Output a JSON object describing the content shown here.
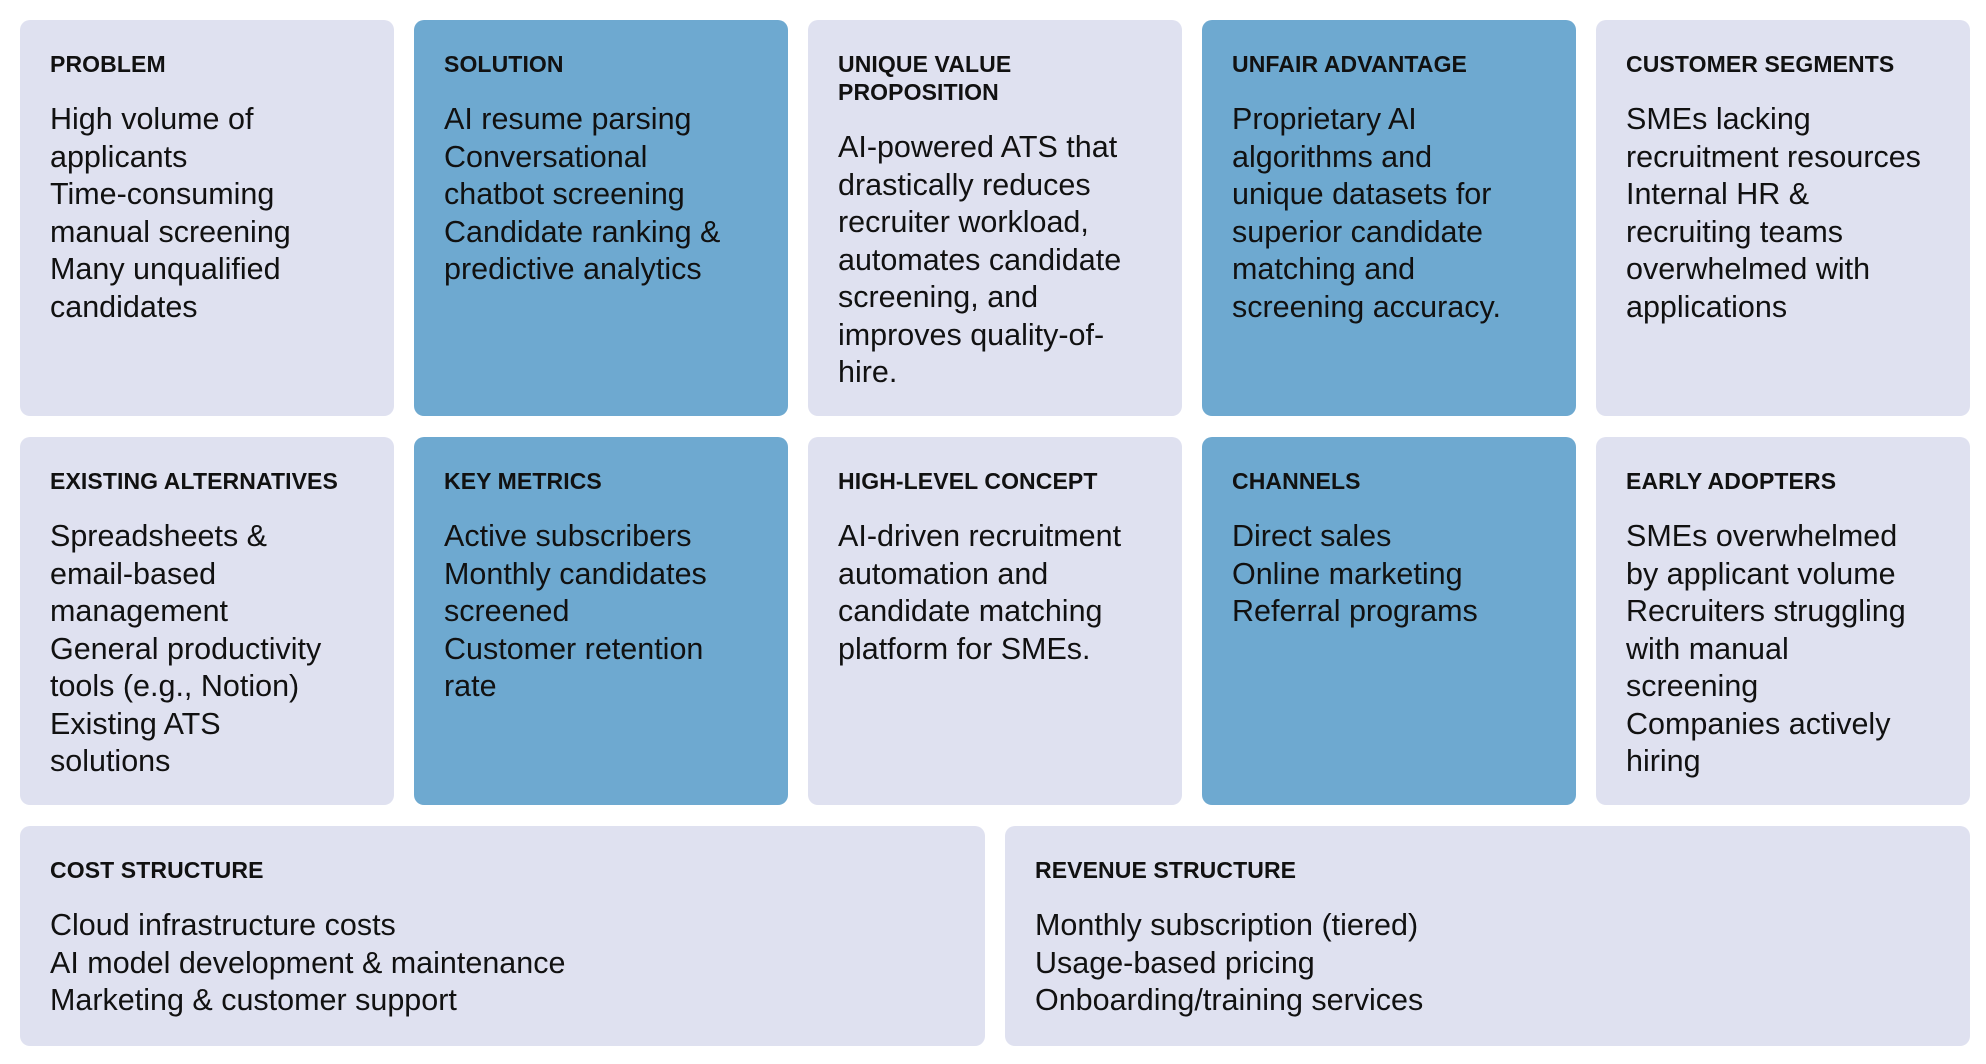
{
  "canvas": {
    "colors": {
      "light_card": "#dfe1f0",
      "blue_card": "#6ea9d0",
      "text": "#111111"
    },
    "cards": {
      "problem": {
        "title": "PROBLEM",
        "lines": [
          "High volume of",
          "applicants",
          "Time-consuming",
          "manual screening",
          "Many unqualified",
          "candidates"
        ]
      },
      "solution": {
        "title": "SOLUTION",
        "lines": [
          "AI resume parsing",
          "Conversational",
          "chatbot screening",
          "Candidate ranking &",
          "predictive analytics"
        ]
      },
      "uvp": {
        "title": "UNIQUE VALUE PROPOSITION",
        "title_lines": [
          "UNIQUE VALUE",
          "PROPOSITION"
        ],
        "lines": [
          "AI-powered ATS that",
          "drastically reduces",
          "recruiter workload,",
          "automates candidate",
          "screening, and",
          "improves quality-of-",
          "hire."
        ]
      },
      "unfair": {
        "title": "UNFAIR ADVANTAGE",
        "lines": [
          "Proprietary AI",
          "algorithms and",
          "unique datasets for",
          "superior candidate",
          "matching and",
          "screening accuracy."
        ]
      },
      "segments": {
        "title": "CUSTOMER SEGMENTS",
        "lines": [
          "SMEs lacking",
          "recruitment resources",
          "Internal HR &",
          "recruiting teams",
          "overwhelmed with",
          "applications"
        ]
      },
      "alternatives": {
        "title": "EXISTING ALTERNATIVES",
        "lines": [
          "Spreadsheets &",
          "email-based",
          "management",
          "General productivity",
          "tools (e.g., Notion)",
          "Existing ATS",
          "solutions"
        ]
      },
      "metrics": {
        "title": "KEY METRICS",
        "lines": [
          "Active subscribers",
          "Monthly candidates",
          "screened",
          "Customer retention",
          "rate"
        ]
      },
      "concept": {
        "title": "HIGH-LEVEL CONCEPT",
        "lines": [
          "AI-driven recruitment",
          "automation and",
          "candidate matching",
          "platform for SMEs."
        ]
      },
      "channels": {
        "title": "CHANNELS",
        "lines": [
          "Direct sales",
          "Online marketing",
          "Referral programs"
        ]
      },
      "adopters": {
        "title": "EARLY ADOPTERS",
        "lines": [
          "SMEs overwhelmed",
          "by applicant volume",
          "Recruiters struggling",
          "with manual",
          "screening",
          "Companies actively",
          "hiring"
        ]
      },
      "cost": {
        "title": "COST STRUCTURE",
        "lines": [
          "Cloud infrastructure costs",
          "AI model development & maintenance",
          "Marketing & customer support"
        ]
      },
      "revenue": {
        "title": "REVENUE STRUCTURE",
        "lines": [
          "Monthly subscription (tiered)",
          "Usage-based pricing",
          "Onboarding/training services"
        ]
      }
    }
  }
}
